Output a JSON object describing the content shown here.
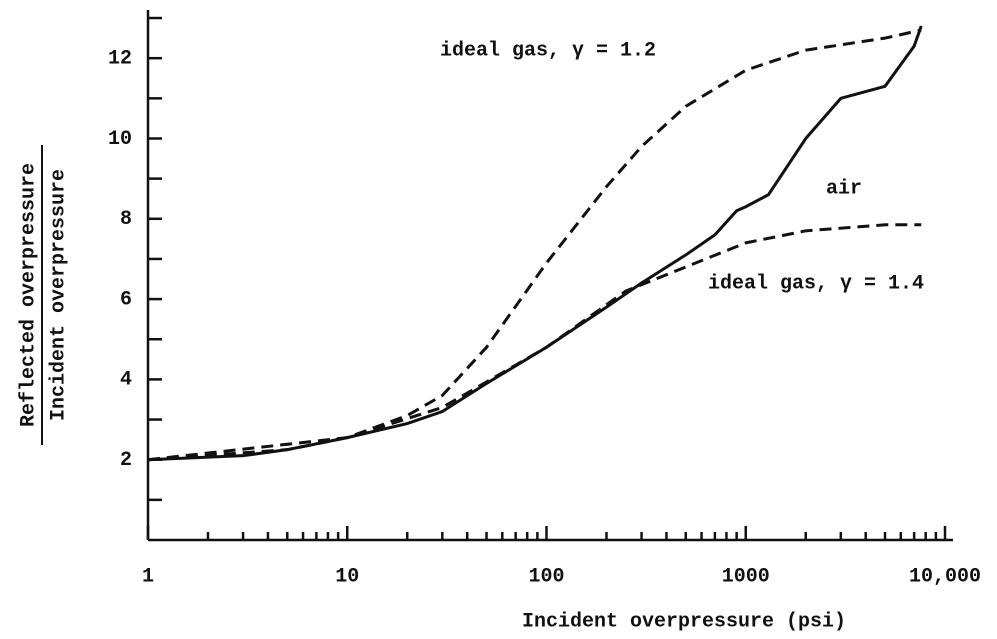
{
  "chart_data": {
    "type": "line",
    "xlabel": "Incident overpressure (psi)",
    "ylabel_top": "Reflected overpressure",
    "ylabel_bottom": "Incident overpressure",
    "log_x": true,
    "xlim": [
      1,
      10000
    ],
    "ylim": [
      0,
      13.2
    ],
    "xticks": [
      1,
      10,
      100,
      1000,
      {
        "value": 10000,
        "label": "10,000"
      }
    ],
    "x_minor_ticks": [
      2,
      3,
      4,
      5,
      6,
      7,
      8,
      9,
      20,
      30,
      40,
      50,
      60,
      70,
      80,
      90,
      200,
      300,
      400,
      500,
      600,
      700,
      800,
      900,
      2000,
      3000,
      4000,
      5000,
      6000,
      7000,
      8000,
      9000
    ],
    "yticks": [
      2,
      4,
      6,
      8,
      10,
      12
    ],
    "y_minor_ticks": [
      1,
      3,
      5,
      7,
      9,
      11,
      13
    ],
    "series": [
      {
        "name": "ideal gas, γ = 1.2",
        "color": "#111",
        "dash": true,
        "x": [
          1,
          5,
          10,
          20,
          30,
          50,
          100,
          200,
          300,
          500,
          1000,
          2000,
          5000,
          7600
        ],
        "values": [
          2,
          2.25,
          2.55,
          3.1,
          3.6,
          4.8,
          6.9,
          8.8,
          9.8,
          10.8,
          11.7,
          12.2,
          12.5,
          12.7
        ]
      },
      {
        "name": "air",
        "color": "#111",
        "dash": false,
        "x": [
          1,
          3,
          5,
          10,
          20,
          30,
          50,
          100,
          200,
          300,
          500,
          700,
          900,
          1000,
          1300,
          2000,
          3000,
          5000,
          7000,
          7600
        ],
        "values": [
          2,
          2.1,
          2.25,
          2.55,
          2.9,
          3.2,
          3.9,
          4.8,
          5.8,
          6.4,
          7.1,
          7.6,
          8.2,
          8.3,
          8.6,
          10,
          11,
          11.3,
          12.3,
          12.8
        ]
      },
      {
        "name": "ideal gas, γ = 1.4",
        "color": "#111",
        "dash": true,
        "x": [
          1,
          10,
          30,
          100,
          250,
          500,
          1000,
          2000,
          5000,
          7600
        ],
        "values": [
          2,
          2.55,
          3.3,
          4.8,
          6.2,
          6.8,
          7.4,
          7.7,
          7.85,
          7.85
        ]
      }
    ]
  }
}
